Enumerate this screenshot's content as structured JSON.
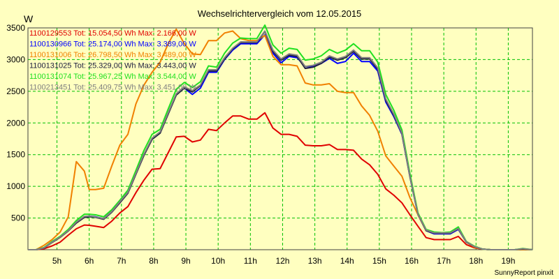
{
  "chart_data": {
    "type": "line",
    "title": "Wechselrichtervergleich vom 12.05.2015",
    "ylabel": "W",
    "xlabel": "",
    "credit": "SunnyReport pinxit",
    "x_tick_labels": [
      "5h",
      "6h",
      "7h",
      "8h",
      "9h",
      "10h",
      "11h",
      "12h",
      "13h",
      "14h",
      "15h",
      "16h",
      "17h",
      "18h",
      "19h"
    ],
    "x_ticks": [
      5,
      6,
      7,
      8,
      9,
      10,
      11,
      12,
      13,
      14,
      15,
      16,
      17,
      18,
      19
    ],
    "y_ticks": [
      500,
      1000,
      1500,
      2000,
      2500,
      3000,
      3500
    ],
    "xlim": [
      4.1,
      19.75
    ],
    "ylim": [
      0,
      3500
    ],
    "grid": true,
    "legend_position": "top-left",
    "x": [
      4.1,
      4.35,
      4.6,
      4.85,
      5.1,
      5.35,
      5.6,
      5.85,
      6.0,
      6.2,
      6.45,
      6.7,
      6.95,
      7.2,
      7.45,
      7.7,
      7.95,
      8.2,
      8.45,
      8.7,
      8.95,
      9.2,
      9.45,
      9.7,
      9.95,
      10.2,
      10.45,
      10.7,
      10.95,
      11.2,
      11.45,
      11.7,
      11.95,
      12.2,
      12.45,
      12.7,
      12.95,
      13.2,
      13.45,
      13.7,
      13.95,
      14.2,
      14.45,
      14.7,
      14.95,
      15.2,
      15.45,
      15.7,
      15.95,
      16.2,
      16.45,
      16.7,
      16.95,
      17.2,
      17.45,
      17.7,
      17.95,
      18.2,
      18.45,
      18.7,
      18.95,
      19.2,
      19.45,
      19.75
    ],
    "series": [
      {
        "name": "1100129553 Tot: 15.054,50 Wh Max: 2.166,00 W",
        "color": "#e00000",
        "values": [
          0,
          0,
          15,
          60,
          120,
          230,
          330,
          390,
          385,
          370,
          350,
          450,
          580,
          680,
          900,
          1100,
          1270,
          1280,
          1530,
          1780,
          1790,
          1700,
          1730,
          1900,
          1880,
          2000,
          2110,
          2110,
          2060,
          2060,
          2160,
          1920,
          1820,
          1820,
          1790,
          1650,
          1640,
          1640,
          1660,
          1580,
          1580,
          1570,
          1430,
          1340,
          1190,
          960,
          860,
          740,
          550,
          370,
          190,
          160,
          160,
          160,
          210,
          80,
          30,
          10,
          0,
          0,
          0,
          0,
          0,
          0
        ]
      },
      {
        "name": "1100130966 Tot: 25.174,00 Wh Max: 3.389,00 W",
        "color": "#0000ff",
        "values": [
          0,
          0,
          30,
          120,
          200,
          300,
          430,
          520,
          530,
          520,
          490,
          600,
          750,
          900,
          1200,
          1500,
          1750,
          1850,
          2150,
          2450,
          2550,
          2450,
          2550,
          2800,
          2800,
          3000,
          3150,
          3250,
          3250,
          3250,
          3390,
          3100,
          2950,
          3050,
          3030,
          2890,
          2890,
          2940,
          3020,
          2940,
          2970,
          3100,
          2970,
          2970,
          2820,
          2330,
          2100,
          1820,
          1150,
          550,
          300,
          250,
          250,
          250,
          320,
          120,
          50,
          10,
          0,
          0,
          0,
          0,
          10,
          0
        ]
      },
      {
        "name": "1100131006 Tot: 26.798,50 Wh Max: 3.489,00 W",
        "color": "#f08000",
        "values": [
          0,
          0,
          70,
          160,
          280,
          520,
          1390,
          1240,
          950,
          950,
          970,
          1320,
          1650,
          1820,
          2300,
          2600,
          2800,
          2960,
          3250,
          3480,
          3250,
          3090,
          3080,
          3300,
          3300,
          3420,
          3450,
          3330,
          3300,
          3300,
          3380,
          3050,
          2920,
          2920,
          2900,
          2630,
          2600,
          2600,
          2620,
          2500,
          2480,
          2480,
          2270,
          2120,
          1870,
          1480,
          1320,
          1160,
          820,
          550,
          300,
          270,
          260,
          270,
          330,
          120,
          40,
          10,
          0,
          0,
          0,
          0,
          0,
          0
        ]
      },
      {
        "name": "1100131025 Tot: 25.329,00 Wh Max: 3.443,00 W",
        "color": "#202040",
        "values": [
          0,
          0,
          28,
          115,
          195,
          295,
          420,
          510,
          520,
          510,
          480,
          590,
          740,
          890,
          1190,
          1490,
          1740,
          1840,
          2140,
          2440,
          2550,
          2490,
          2590,
          2820,
          2820,
          3010,
          3170,
          3270,
          3270,
          3270,
          3443,
          3130,
          2990,
          3070,
          3050,
          2860,
          2880,
          2940,
          3040,
          2990,
          3030,
          3130,
          3010,
          3010,
          2850,
          2360,
          2120,
          1830,
          1150,
          560,
          300,
          260,
          260,
          260,
          330,
          120,
          50,
          10,
          0,
          0,
          0,
          0,
          10,
          0
        ]
      },
      {
        "name": "1100131074 Tot: 25.967,25 Wh Max: 3.544,00 W",
        "color": "#20e020",
        "values": [
          0,
          0,
          35,
          130,
          210,
          320,
          460,
          560,
          560,
          550,
          520,
          630,
          780,
          940,
          1250,
          1570,
          1820,
          1900,
          2220,
          2530,
          2640,
          2560,
          2650,
          2900,
          2880,
          3100,
          3260,
          3340,
          3330,
          3330,
          3544,
          3230,
          3100,
          3180,
          3160,
          2990,
          3010,
          3060,
          3160,
          3100,
          3150,
          3250,
          3140,
          3140,
          2960,
          2450,
          2200,
          1890,
          1200,
          580,
          320,
          280,
          270,
          280,
          360,
          130,
          55,
          10,
          0,
          0,
          0,
          0,
          20,
          0
        ]
      },
      {
        "name": "1100213451 Tot: 25.409,75 Wh Max: 3.451,00 W",
        "color": "#808080",
        "values": [
          0,
          0,
          30,
          120,
          200,
          300,
          435,
          525,
          530,
          515,
          490,
          600,
          755,
          905,
          1205,
          1510,
          1760,
          1860,
          2160,
          2460,
          2570,
          2510,
          2600,
          2840,
          2840,
          3030,
          3180,
          3280,
          3280,
          3280,
          3451,
          3150,
          3010,
          3090,
          3070,
          2890,
          2910,
          2960,
          3060,
          3010,
          3050,
          3150,
          3030,
          3030,
          2870,
          2380,
          2140,
          1840,
          1160,
          560,
          310,
          265,
          265,
          265,
          335,
          125,
          50,
          10,
          0,
          0,
          0,
          0,
          15,
          0
        ]
      }
    ]
  }
}
